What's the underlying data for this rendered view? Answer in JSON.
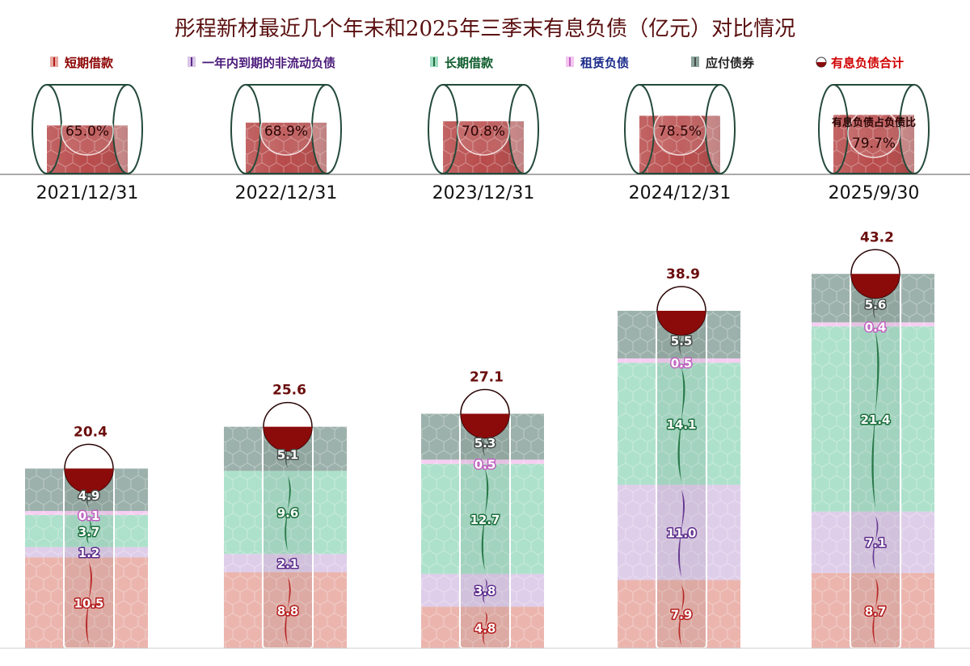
{
  "chart_data": {
    "type": "bar",
    "stacked": true,
    "title": "彤程新材最近几个年末和2025年三季末有息负债（亿元）对比情况",
    "categories": [
      "2021/12/31",
      "2022/12/31",
      "2023/12/31",
      "2024/12/31",
      "2025/9/30"
    ],
    "series": [
      {
        "name": "短期借款",
        "values": [
          10.5,
          8.8,
          4.8,
          7.9,
          8.7
        ]
      },
      {
        "name": "一年内到期的非流动负债",
        "values": [
          1.2,
          2.1,
          3.8,
          11.0,
          7.1
        ]
      },
      {
        "name": "长期借款",
        "values": [
          3.7,
          9.6,
          12.7,
          14.1,
          21.4
        ]
      },
      {
        "name": "租赁负债",
        "values": [
          0.1,
          0.0,
          0.5,
          0.5,
          0.4
        ]
      },
      {
        "name": "应付债券",
        "values": [
          4.9,
          5.1,
          5.3,
          5.5,
          5.6
        ]
      }
    ],
    "totals_label": "有息负债合计",
    "totals": [
      20.4,
      25.6,
      27.1,
      38.9,
      43.2
    ],
    "ratio_caption": "有息负债占负债比",
    "ratios": [
      "65.0%",
      "68.9%",
      "70.8%",
      "78.5%",
      "79.7%"
    ],
    "ratio_values": [
      65.0,
      68.9,
      70.8,
      78.5,
      79.7
    ],
    "label_formats": [
      [
        "10.5",
        "1.2",
        "3.7",
        "0.1",
        "4.9"
      ],
      [
        "8.8",
        "2.1",
        "9.6",
        "",
        "5.1"
      ],
      [
        "4.8",
        "3.8",
        "12.7",
        "0.5",
        "5.3"
      ],
      [
        "7.9",
        "11.0",
        "14.1",
        "0.5",
        "5.5"
      ],
      [
        "8.7",
        "7.1",
        "21.4",
        "0.4",
        "5.6"
      ]
    ],
    "legend": "top",
    "colors": {
      "series": [
        "#e7a8a0",
        "#d9c6e6",
        "#9fdcc2",
        "#f3c6f0",
        "#8ba39c"
      ],
      "labels": [
        "#b31a1a",
        "#5b2a8a",
        "#1a6e3a",
        "#c060c0",
        "#444c48"
      ],
      "legend_text": [
        "#8b0000",
        "#4b1a7a",
        "#0b5a2a",
        "#1a2a8a",
        "#222222",
        "#d00000"
      ],
      "total_cap": "#8b0a0a",
      "cylinder_fill": "#b84a4a"
    },
    "grid": false
  }
}
